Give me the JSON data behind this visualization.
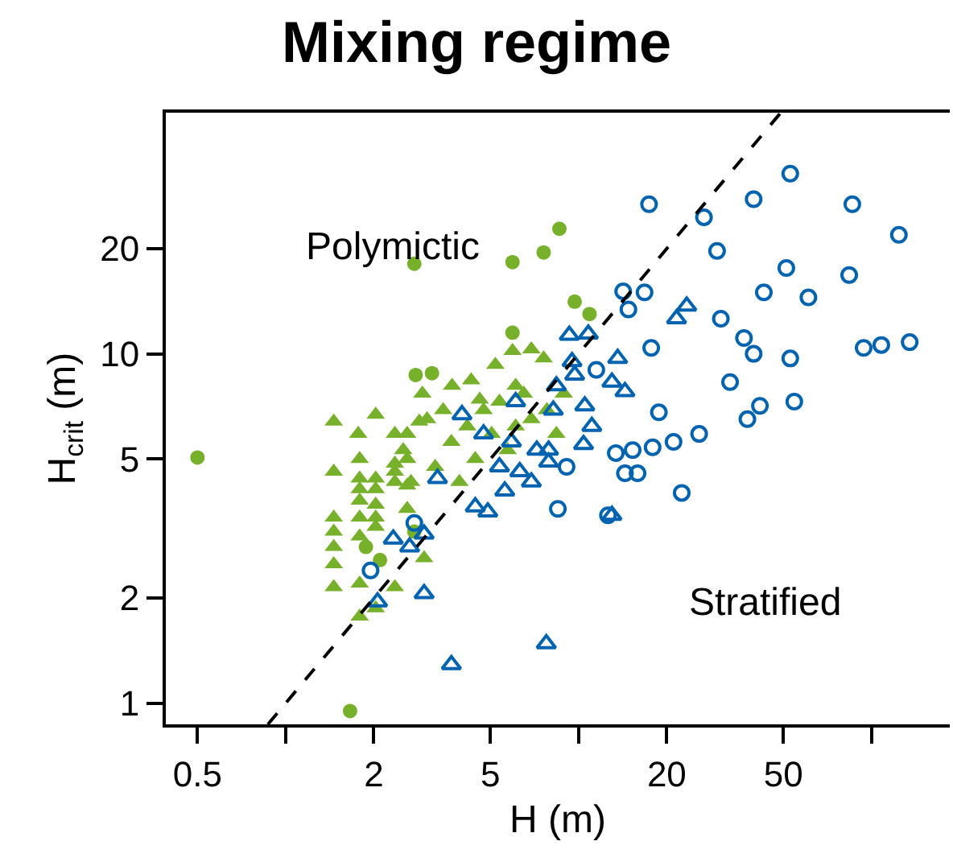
{
  "chart_data": {
    "type": "scatter",
    "title": "Mixing regime",
    "xlabel": "H (m)",
    "ylabel": "H$_{crit}$ (m)",
    "log": "xy",
    "legend": false,
    "xlim": [
      0.39,
      185
    ],
    "ylim": [
      0.87,
      49
    ],
    "xticks": [
      0.5,
      {
        "value": 1,
        "label": null
      },
      2,
      5,
      {
        "value": 10,
        "label": null
      },
      20,
      50,
      {
        "value": 100,
        "label": null
      }
    ],
    "yticks": [
      1,
      2,
      5,
      10,
      20
    ],
    "annotations": [
      "Polymictic",
      "Stratified"
    ],
    "series": [
      {
        "marker": "triangle",
        "color": "#77b02a",
        "x": [
          1.46,
          1.46,
          1.46,
          1.46,
          1.46,
          1.46,
          1.46,
          1.79,
          1.79,
          1.79,
          1.79,
          1.79,
          1.79,
          1.79,
          1.79,
          2.03,
          2.03,
          2.03,
          2.03,
          2.03,
          2.03,
          2.36,
          2.36,
          2.36,
          2.36,
          2.6,
          2.6,
          2.6,
          2.6,
          2.97,
          3.7,
          4.3,
          5.2,
          5.95,
          6.9,
          7.6,
          4.6,
          6.1,
          2.86,
          2.36,
          2.52,
          3.04,
          3.24,
          3.68,
          3.92,
          4.17,
          4.44,
          4.74,
          5.05,
          5.37,
          5.73,
          6.1,
          6.5,
          6.9,
          7.8,
          8.4,
          8.9,
          2.68,
          2.93,
          3.45,
          2.03,
          1.77
        ],
        "values": [
          6.4,
          4.6,
          3.4,
          3.1,
          2.8,
          2.5,
          2.15,
          5.0,
          4.4,
          4.1,
          3.8,
          3.4,
          3.0,
          2.2,
          1.77,
          4.4,
          4.1,
          3.7,
          3.4,
          3.2,
          1.87,
          4.85,
          4.6,
          4.3,
          2.15,
          5.9,
          5.0,
          4.2,
          3.6,
          2.6,
          8.1,
          8.4,
          9.3,
          10.2,
          10.3,
          9.7,
          7.4,
          8.1,
          6.4,
          5.9,
          5.3,
          6.5,
          4.75,
          5.6,
          4.3,
          6.2,
          5.0,
          6.9,
          5.9,
          7.3,
          5.3,
          6.2,
          7.7,
          6.5,
          6.9,
          5.9,
          7.7,
          4.3,
          7.7,
          6.9,
          6.7,
          5.9
        ]
      },
      {
        "marker": "circle",
        "color": "#77b02a",
        "x": [
          0.5,
          2.75,
          5.95,
          7.6,
          8.6,
          9.7,
          10.9,
          5.95,
          2.78,
          3.16,
          1.66,
          1.88,
          2.1,
          2.75
        ],
        "values": [
          5.05,
          18.1,
          18.3,
          19.5,
          22.8,
          14.1,
          13.0,
          11.5,
          8.7,
          8.8,
          0.95,
          2.8,
          2.57,
          3.1
        ]
      },
      {
        "marker": "circle",
        "color": "#0063b0",
        "x": [
          17.4,
          26.8,
          52.8,
          39.6,
          86,
          124,
          29.7,
          51.2,
          83.9,
          42.9,
          60.9,
          14.2,
          16.8,
          14.8,
          30.6,
          36.7,
          39.6,
          52.8,
          94,
          108,
          135,
          17.7,
          32.9,
          41.6,
          37.7,
          54.5,
          18.8,
          25.8,
          21.1,
          17.9,
          15.3,
          13.4,
          14.4,
          15.9,
          22.5,
          8.5,
          12.6,
          11.5,
          9.1,
          1.95,
          2.75
        ],
        "values": [
          26.8,
          24.6,
          32.8,
          27.7,
          26.8,
          21.9,
          19.7,
          17.6,
          16.8,
          15.0,
          14.5,
          15.1,
          15.0,
          13.4,
          12.6,
          11.1,
          10.0,
          9.7,
          10.4,
          10.6,
          10.8,
          10.4,
          8.3,
          7.1,
          6.5,
          7.3,
          6.8,
          5.9,
          5.6,
          5.4,
          5.3,
          5.2,
          4.55,
          4.55,
          4.0,
          3.6,
          3.45,
          9.0,
          4.75,
          2.4,
          3.28
        ]
      },
      {
        "marker": "triangle",
        "color": "#0063b0",
        "x": [
          23.4,
          21.6,
          9.3,
          10.8,
          13.6,
          9.7,
          13.0,
          14.4,
          10.5,
          8.2,
          11.1,
          10.4,
          7.9,
          13.0,
          4.0,
          3.3,
          2.33,
          2.65,
          2.97,
          2.06,
          2.97,
          3.68,
          7.76,
          4.44,
          4.9,
          5.6,
          6.3,
          7.2,
          7.9,
          4.74,
          5.9,
          9.5,
          6.1,
          8.4,
          5.37,
          6.9
        ],
        "values": [
          13.7,
          12.6,
          11.3,
          11.4,
          9.7,
          8.7,
          8.3,
          7.8,
          7.1,
          6.9,
          6.2,
          5.5,
          5.3,
          3.45,
          6.7,
          4.4,
          2.95,
          2.8,
          3.05,
          1.95,
          2.06,
          1.29,
          1.48,
          3.65,
          3.53,
          4.05,
          4.6,
          5.3,
          4.9,
          5.9,
          5.6,
          9.5,
          7.3,
          8.1,
          4.75,
          4.3
        ]
      },
      {
        "type": "line",
        "marker": "none",
        "line_style": "dashed",
        "color": "#000000",
        "x": [
          0.87,
          49
        ],
        "values": [
          0.87,
          49
        ]
      }
    ]
  }
}
